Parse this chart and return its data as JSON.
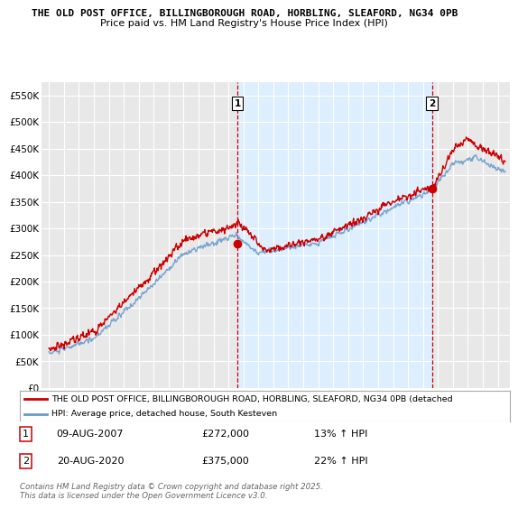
{
  "title": "THE OLD POST OFFICE, BILLINGBOROUGH ROAD, HORBLING, SLEAFORD, NG34 0PB",
  "subtitle": "Price paid vs. HM Land Registry's House Price Index (HPI)",
  "ylabel_ticks": [
    "£0",
    "£50K",
    "£100K",
    "£150K",
    "£200K",
    "£250K",
    "£300K",
    "£350K",
    "£400K",
    "£450K",
    "£500K",
    "£550K"
  ],
  "ytick_values": [
    0,
    50000,
    100000,
    150000,
    200000,
    250000,
    300000,
    350000,
    400000,
    450000,
    500000,
    550000
  ],
  "ylim": [
    0,
    575000
  ],
  "xlim_start": 1994.5,
  "xlim_end": 2025.8,
  "background_color": "#ffffff",
  "plot_bg_color": "#e8e8e8",
  "grid_color": "#ffffff",
  "line1_color": "#cc0000",
  "line2_color": "#6699cc",
  "shade_color": "#ddeeff",
  "marker1_date": 2007.6,
  "marker2_date": 2020.6,
  "marker1_value": 272000,
  "marker2_value": 375000,
  "dashed_line1_x": 2007.6,
  "dashed_line2_x": 2020.6,
  "legend_line1": "THE OLD POST OFFICE, BILLINGBOROUGH ROAD, HORBLING, SLEAFORD, NG34 0PB (detached",
  "legend_line2": "HPI: Average price, detached house, South Kesteven",
  "annotation1_date": "09-AUG-2007",
  "annotation1_price": "£272,000",
  "annotation1_hpi": "13% ↑ HPI",
  "annotation2_date": "20-AUG-2020",
  "annotation2_price": "£375,000",
  "annotation2_hpi": "22% ↑ HPI",
  "footer": "Contains HM Land Registry data © Crown copyright and database right 2025.\nThis data is licensed under the Open Government Licence v3.0."
}
